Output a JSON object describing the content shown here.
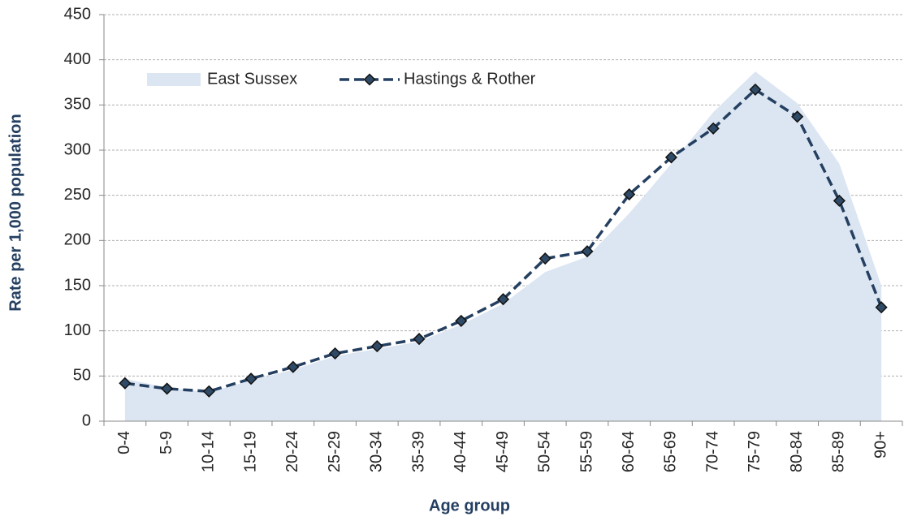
{
  "chart_data": {
    "type": "line",
    "x_label": "Age group",
    "y_label": "Rate per 1,000 population",
    "categories": [
      "0-4",
      "5-9",
      "10-14",
      "15-19",
      "20-24",
      "25-29",
      "30-34",
      "35-39",
      "40-44",
      "45-49",
      "50-54",
      "55-59",
      "60-64",
      "65-69",
      "70-74",
      "75-79",
      "80-84",
      "85-89",
      "90+"
    ],
    "series": [
      {
        "name": "East Sussex",
        "type": "area",
        "color": "#dce6f2",
        "values": [
          47,
          37,
          32,
          45,
          57,
          72,
          80,
          88,
          107,
          130,
          165,
          182,
          230,
          285,
          342,
          387,
          352,
          285,
          150
        ]
      },
      {
        "name": "Hastings & Rother",
        "type": "line",
        "color": "#243f60",
        "values": [
          42,
          36,
          33,
          47,
          60,
          75,
          83,
          91,
          111,
          135,
          180,
          188,
          251,
          292,
          324,
          367,
          337,
          244,
          126
        ]
      }
    ],
    "ylim": [
      0,
      450
    ],
    "yticks": [
      0,
      50,
      100,
      150,
      200,
      250,
      300,
      350,
      400,
      450
    ],
    "grid": true,
    "legend": "top-left"
  }
}
